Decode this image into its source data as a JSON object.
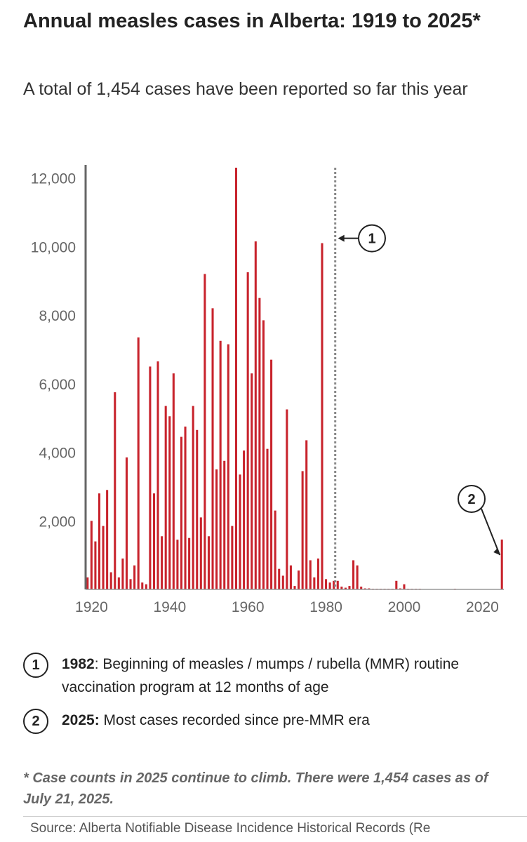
{
  "header": {
    "title": "Annual measles cases in Alberta: 1919 to 2025*",
    "subtitle": "A total of 1,454 cases have been reported so far this year"
  },
  "chart_data": {
    "type": "bar",
    "x": [
      1919,
      1920,
      1921,
      1922,
      1923,
      1924,
      1925,
      1926,
      1927,
      1928,
      1929,
      1930,
      1931,
      1932,
      1933,
      1934,
      1935,
      1936,
      1937,
      1938,
      1939,
      1940,
      1941,
      1942,
      1943,
      1944,
      1945,
      1946,
      1947,
      1948,
      1949,
      1950,
      1951,
      1952,
      1953,
      1954,
      1955,
      1956,
      1957,
      1958,
      1959,
      1960,
      1961,
      1962,
      1963,
      1964,
      1965,
      1966,
      1967,
      1968,
      1969,
      1970,
      1971,
      1972,
      1973,
      1974,
      1975,
      1976,
      1977,
      1978,
      1979,
      1980,
      1981,
      1982,
      1983,
      1984,
      1985,
      1986,
      1987,
      1988,
      1989,
      1990,
      1991,
      1992,
      1993,
      1994,
      1995,
      1996,
      1997,
      1998,
      1999,
      2000,
      2001,
      2002,
      2003,
      2004,
      2005,
      2006,
      2007,
      2008,
      2009,
      2010,
      2011,
      2012,
      2013,
      2014,
      2015,
      2016,
      2017,
      2018,
      2019,
      2020,
      2021,
      2022,
      2023,
      2024,
      2025
    ],
    "values": [
      350,
      2000,
      1400,
      2800,
      1850,
      2900,
      500,
      5750,
      350,
      900,
      3850,
      300,
      700,
      7350,
      200,
      150,
      6500,
      2800,
      6650,
      1550,
      5350,
      5050,
      6300,
      1450,
      4450,
      4750,
      1500,
      5350,
      4650,
      2100,
      9200,
      1550,
      8200,
      3500,
      7250,
      3750,
      7150,
      1850,
      12300,
      3350,
      4050,
      9250,
      6300,
      10150,
      8500,
      7850,
      4100,
      6700,
      2300,
      600,
      400,
      5250,
      700,
      100,
      550,
      3450,
      4350,
      850,
      350,
      900,
      10100,
      300,
      200,
      250,
      250,
      80,
      50,
      100,
      850,
      700,
      80,
      30,
      30,
      20,
      20,
      20,
      20,
      20,
      20,
      250,
      30,
      150,
      20,
      20,
      20,
      20,
      10,
      10,
      10,
      10,
      10,
      10,
      10,
      10,
      20,
      10,
      10,
      10,
      10,
      10,
      10,
      10,
      10,
      10,
      10,
      10,
      1454
    ],
    "xticks": [
      "1920",
      "1940",
      "1960",
      "1980",
      "2000",
      "2020"
    ],
    "yticks": [
      "2,000",
      "4,000",
      "6,000",
      "8,000",
      "10,000",
      "12,000"
    ],
    "xlim": [
      1918.5,
      2025.5
    ],
    "ylim": [
      0,
      12300
    ],
    "bar_color": "#c8232c",
    "grid": false,
    "annotations": [
      {
        "marker": "1",
        "year": 1982,
        "y": 10200
      },
      {
        "marker": "2",
        "year": 2025,
        "y": 1454
      }
    ]
  },
  "notes": [
    {
      "marker": "1",
      "year_label": "1982",
      "text": ": Beginning of measles / mumps / rubella (MMR) routine vaccination program at 12 months of age"
    },
    {
      "marker": "2",
      "year_label": "2025:",
      "text": " Most cases recorded since pre-MMR era"
    }
  ],
  "footnote": "* Case counts in 2025 continue to climb. There were 1,454 cases as of July 21, 2025.",
  "source": "Source: Alberta Notifiable Disease Incidence Historical Records (Re"
}
